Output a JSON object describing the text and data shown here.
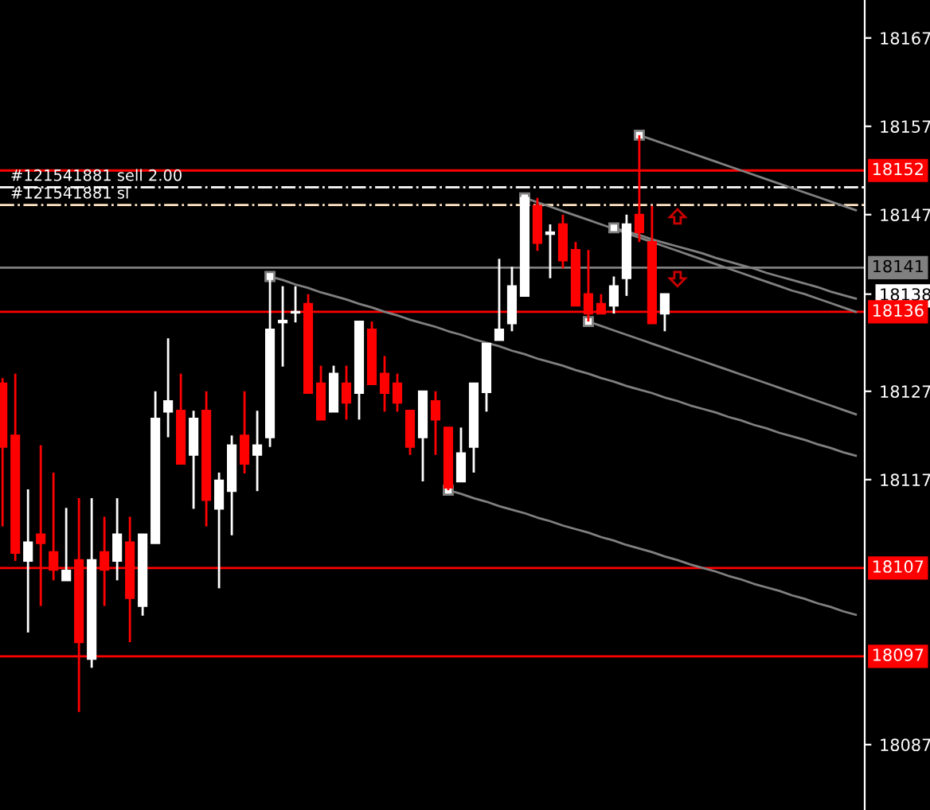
{
  "chart_data": {
    "type": "candlestick",
    "categories": [
      null,
      null,
      null,
      null,
      null,
      null,
      null,
      null,
      null,
      null,
      null,
      null,
      null,
      null,
      null,
      null,
      null,
      null,
      null,
      null,
      null,
      null,
      null,
      null,
      null,
      null,
      null,
      null,
      null,
      null,
      null,
      null,
      null,
      null,
      null,
      null,
      null,
      null,
      null,
      null,
      null,
      null,
      null,
      null,
      null,
      null,
      null,
      null,
      null,
      null,
      null,
      null,
      null,
      null,
      null,
      null,
      null,
      null,
      null,
      null,
      null,
      null,
      null,
      null,
      null,
      null,
      null,
      null
    ],
    "ohlc": [
      [
        18127.9,
        18128.5,
        18111.7,
        18120.7
      ],
      [
        18122.0,
        18129.0,
        18107.8,
        18108.7
      ],
      [
        18107.8,
        18115.9,
        18099.7,
        18109.9
      ],
      [
        18110.8,
        18120.9,
        18102.7,
        18109.8
      ],
      [
        18108.8,
        18117.8,
        18105.6,
        18106.8
      ],
      [
        18105.6,
        18113.8,
        18105.6,
        18106.7
      ],
      [
        18107.9,
        18114.9,
        18090.7,
        18098.6
      ],
      [
        18096.7,
        18114.9,
        18095.7,
        18107.9
      ],
      [
        18108.8,
        18112.8,
        18102.7,
        18106.8
      ],
      [
        18107.8,
        18114.9,
        18105.6,
        18110.8
      ],
      [
        18109.9,
        18112.8,
        18098.6,
        18103.6
      ],
      [
        18102.7,
        18110.8,
        18101.6,
        18110.8
      ],
      [
        18109.8,
        18127.0,
        18109.8,
        18123.9
      ],
      [
        18124.7,
        18133.0,
        18121.8,
        18125.9
      ],
      [
        18124.8,
        18129.0,
        18118.8,
        18118.8
      ],
      [
        18119.8,
        18124.8,
        18113.7,
        18123.9
      ],
      [
        18124.8,
        18127.0,
        18111.7,
        18114.7
      ],
      [
        18113.7,
        18117.8,
        18104.7,
        18116.9
      ],
      [
        18115.7,
        18122.0,
        18110.7,
        18120.9
      ],
      [
        18122.0,
        18127.0,
        18117.7,
        18118.8
      ],
      [
        18119.8,
        18124.8,
        18115.7,
        18120.9
      ],
      [
        18121.8,
        18140.0,
        18120.7,
        18134.0
      ],
      [
        18134.8,
        18138.9,
        18129.8,
        18135.0
      ],
      [
        18135.9,
        18138.9,
        18134.8,
        18136.0
      ],
      [
        18136.9,
        18138.0,
        18126.8,
        18126.8
      ],
      [
        18127.9,
        18129.9,
        18123.8,
        18123.8
      ],
      [
        18124.7,
        18129.9,
        18124.7,
        18129.0
      ],
      [
        18127.9,
        18129.9,
        18123.8,
        18125.7
      ],
      [
        18126.8,
        18134.9,
        18123.8,
        18134.9
      ],
      [
        18134.0,
        18134.9,
        18127.8,
        18127.8
      ],
      [
        18129.0,
        18131.0,
        18124.7,
        18126.8
      ],
      [
        18127.9,
        18129.0,
        18124.7,
        18125.7
      ],
      [
        18124.8,
        18124.8,
        18119.8,
        18120.7
      ],
      [
        18121.8,
        18127.0,
        18116.8,
        18127.0
      ],
      [
        18125.9,
        18127.0,
        18119.8,
        18123.8
      ],
      [
        18122.9,
        18122.9,
        18115.8,
        18116.1
      ],
      [
        18116.8,
        18122.9,
        18116.8,
        18120.0
      ],
      [
        18120.7,
        18127.9,
        18117.8,
        18127.9
      ],
      [
        18126.9,
        18132.4,
        18124.7,
        18132.4
      ],
      [
        18132.8,
        18142.0,
        18132.8,
        18134.0
      ],
      [
        18134.7,
        18141.1,
        18133.8,
        18138.9
      ],
      [
        18137.8,
        18148.9,
        18137.8,
        18148.9
      ],
      [
        18148.0,
        18148.9,
        18142.9,
        18143.8
      ],
      [
        18144.8,
        18145.9,
        18139.8,
        18145.0
      ],
      [
        18145.9,
        18147.0,
        18140.9,
        18141.8
      ],
      [
        18143.0,
        18143.9,
        18136.7,
        18136.7
      ],
      [
        18138.0,
        18143.0,
        18134.9,
        18135.8
      ],
      [
        18136.9,
        18138.0,
        18135.8,
        18135.8
      ],
      [
        18136.7,
        18140.0,
        18135.8,
        18138.9
      ],
      [
        18139.8,
        18147.0,
        18137.8,
        18145.9
      ],
      [
        18147.0,
        18156.0,
        18143.9,
        18145.0
      ],
      [
        18143.9,
        18148.0,
        18134.7,
        18134.7
      ],
      [
        18135.8,
        18138.0,
        18133.8,
        18138.0
      ],
      null,
      null,
      null,
      null,
      null,
      null,
      null,
      null,
      null,
      null,
      null,
      null,
      null,
      null,
      null
    ],
    "colors": [
      "#ff0000",
      "#ff0000",
      "#ffffff",
      "#ff0000",
      "#ff0000",
      "#ffffff",
      "#ff0000",
      "#ffffff",
      "#ff0000",
      "#ffffff",
      "#ff0000",
      "#ffffff",
      "#ffffff",
      "#ffffff",
      "#ff0000",
      "#ffffff",
      "#ff0000",
      "#ffffff",
      "#ffffff",
      "#ff0000",
      "#ffffff",
      "#ffffff",
      "#ffffff",
      "#ffffff",
      "#ff0000",
      "#ff0000",
      "#ffffff",
      "#ff0000",
      "#ffffff",
      "#ff0000",
      "#ff0000",
      "#ff0000",
      "#ff0000",
      "#ffffff",
      "#ff0000",
      "#ff0000",
      "#ffffff",
      "#ffffff",
      "#ffffff",
      "#ffffff",
      "#ffffff",
      "#ffffff",
      "#ff0000",
      "#ffffff",
      "#ff0000",
      "#ff0000",
      "#ff0000",
      "#ff0000",
      "#ffffff",
      "#ffffff",
      "#ff0000",
      "#ff0000",
      "#ffffff",
      null,
      null,
      null,
      null,
      null,
      null,
      null,
      null,
      null,
      null,
      null,
      null,
      null,
      null,
      null
    ],
    "series": [
      {
        "type": "line",
        "color": "#808080",
        "values": [
          null,
          null,
          null,
          null,
          null,
          null,
          null,
          null,
          null,
          null,
          null,
          null,
          null,
          null,
          null,
          null,
          null,
          null,
          null,
          null,
          null,
          18140.0,
          18139.6,
          18139.1,
          18138.7,
          18138.2,
          18137.8,
          18137.4,
          18136.9,
          18136.5,
          18136.0,
          18135.6,
          18135.1,
          18134.7,
          18134.3,
          18133.8,
          18133.4,
          18132.9,
          18132.5,
          18132.1,
          18131.6,
          18131.2,
          18130.7,
          18130.3,
          18129.9,
          18129.4,
          18129.0,
          18128.5,
          18128.1,
          18127.6,
          18127.2,
          18126.8,
          18126.3,
          18125.9,
          18125.4,
          18125.0,
          18124.6,
          18124.1,
          18123.7,
          18123.2,
          18122.8,
          18122.3,
          18121.9,
          18121.5,
          18121.0,
          18120.6,
          18120.1,
          18119.7
        ]
      },
      {
        "type": "line",
        "color": "#808080",
        "values": [
          null,
          null,
          null,
          null,
          null,
          null,
          null,
          null,
          null,
          null,
          null,
          null,
          null,
          null,
          null,
          null,
          null,
          null,
          null,
          null,
          null,
          null,
          null,
          null,
          null,
          null,
          null,
          null,
          null,
          null,
          null,
          null,
          null,
          null,
          null,
          18115.8,
          18115.4,
          18114.9,
          18114.5,
          18114.0,
          18113.6,
          18113.2,
          18112.7,
          18112.3,
          18111.8,
          18111.4,
          18111.0,
          18110.5,
          18110.1,
          18109.6,
          18109.2,
          18108.8,
          18108.3,
          18107.9,
          18107.4,
          18107.0,
          18106.6,
          18106.1,
          18105.7,
          18105.2,
          18104.8,
          18104.4,
          18103.9,
          18103.5,
          18103.0,
          18102.6,
          18102.1,
          18101.7
        ]
      },
      {
        "type": "line",
        "color": "#808080",
        "values": [
          null,
          null,
          null,
          null,
          null,
          null,
          null,
          null,
          null,
          null,
          null,
          null,
          null,
          null,
          null,
          null,
          null,
          null,
          null,
          null,
          null,
          null,
          null,
          null,
          null,
          null,
          null,
          null,
          null,
          null,
          null,
          null,
          null,
          null,
          null,
          null,
          null,
          null,
          null,
          null,
          null,
          18148.9,
          18148.4,
          18147.9,
          18147.4,
          18146.9,
          18146.4,
          18145.9,
          18145.4,
          18144.9,
          18144.4,
          18143.9,
          18143.4,
          18142.9,
          18142.4,
          18141.9,
          18141.4,
          18140.9,
          18140.4,
          18139.9,
          18139.4,
          18138.9,
          18138.4,
          18138.0,
          18137.5,
          18137.0,
          18136.5,
          18136.0
        ]
      },
      {
        "type": "line",
        "color": "#808080",
        "values": [
          null,
          null,
          null,
          null,
          null,
          null,
          null,
          null,
          null,
          null,
          null,
          null,
          null,
          null,
          null,
          null,
          null,
          null,
          null,
          null,
          null,
          null,
          null,
          null,
          null,
          null,
          null,
          null,
          null,
          null,
          null,
          null,
          null,
          null,
          null,
          null,
          null,
          null,
          null,
          null,
          null,
          null,
          null,
          null,
          null,
          null,
          null,
          null,
          18145.5,
          18145.1,
          18144.7,
          18144.2,
          18143.8,
          18143.4,
          18143.0,
          18142.6,
          18142.1,
          18141.7,
          18141.3,
          18140.9,
          18140.4,
          18140.0,
          18139.6,
          18139.2,
          18138.8,
          18138.3,
          18137.9,
          18137.5
        ]
      },
      {
        "type": "line",
        "color": "#808080",
        "values": [
          null,
          null,
          null,
          null,
          null,
          null,
          null,
          null,
          null,
          null,
          null,
          null,
          null,
          null,
          null,
          null,
          null,
          null,
          null,
          null,
          null,
          null,
          null,
          null,
          null,
          null,
          null,
          null,
          null,
          null,
          null,
          null,
          null,
          null,
          null,
          null,
          null,
          null,
          null,
          null,
          null,
          null,
          null,
          null,
          null,
          null,
          null,
          null,
          null,
          null,
          18156.0,
          18155.5,
          18155.0,
          18154.5,
          18154.0,
          18153.5,
          18153.0,
          18152.5,
          18152.0,
          18151.5,
          18151.0,
          18150.5,
          18150.0,
          18149.5,
          18149.0,
          18148.5,
          18148.0,
          18147.5
        ]
      },
      {
        "type": "line",
        "color": "#808080",
        "values": [
          null,
          null,
          null,
          null,
          null,
          null,
          null,
          null,
          null,
          null,
          null,
          null,
          null,
          null,
          null,
          null,
          null,
          null,
          null,
          null,
          null,
          null,
          null,
          null,
          null,
          null,
          null,
          null,
          null,
          null,
          null,
          null,
          null,
          null,
          null,
          null,
          null,
          null,
          null,
          null,
          null,
          null,
          null,
          null,
          null,
          null,
          18134.9,
          18134.4,
          18133.9,
          18133.4,
          18132.9,
          18132.4,
          18131.9,
          18131.4,
          18130.9,
          18130.4,
          18129.9,
          18129.4,
          18128.9,
          18128.4,
          18127.9,
          18127.4,
          18126.9,
          18126.4,
          18125.9,
          18125.4,
          18124.9,
          18124.4
        ]
      }
    ],
    "ref_lines": [
      {
        "axis": "y",
        "value": 18152,
        "label": "18152",
        "color": "#ff0000",
        "line_style": "solid"
      },
      {
        "axis": "y",
        "value": 18150.1,
        "label": "#121541881 sell 2.00",
        "color": "#ffffff",
        "line_style": "dashdot"
      },
      {
        "axis": "y",
        "value": 18148.1,
        "label": "#121541881 sl",
        "color": "#ffe4c4",
        "line_style": "dashdot"
      },
      {
        "axis": "y",
        "value": 18141,
        "label": "18141",
        "color": "#808080",
        "line_style": "solid"
      },
      {
        "axis": "y",
        "value": 18136,
        "label": "18136",
        "color": "#ff0000",
        "line_style": "solid"
      },
      {
        "axis": "y",
        "value": 18107,
        "label": "18107",
        "color": "#ff0000",
        "line_style": "solid"
      },
      {
        "axis": "y",
        "value": 18097,
        "label": "18097",
        "color": "#ff0000",
        "line_style": "solid"
      }
    ],
    "ylim": [
      18079.6,
      18171.3
    ],
    "yticks": [
      18087,
      18117,
      18127,
      {
        "value": 18138,
        "label": "18138"
      },
      18147,
      18157,
      18167
    ],
    "tick_labels": "y",
    "grid": false,
    "legend": false
  }
}
